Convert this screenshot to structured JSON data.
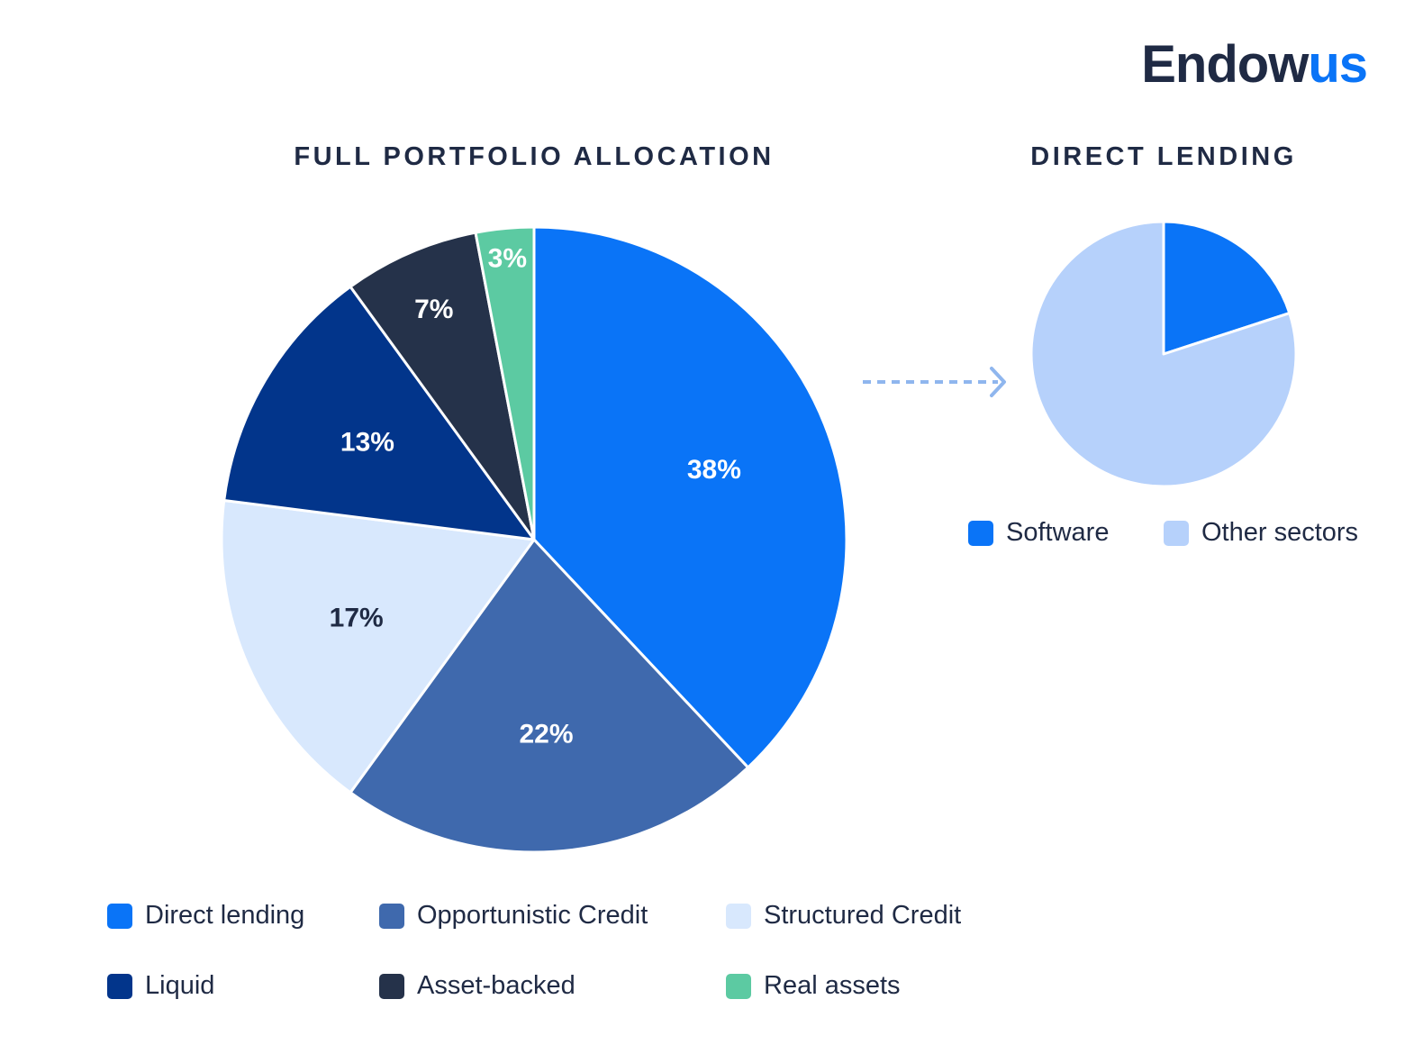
{
  "logo": {
    "main": "Endow",
    "accent": "us"
  },
  "colors": {
    "direct_lending": "#0a74f7",
    "opportunistic_credit": "#3f69ad",
    "structured_credit": "#d8e8fd",
    "liquid": "#02358b",
    "asset_backed": "#25324a",
    "real_assets": "#5ccaa2",
    "software": "#0a74f7",
    "other_sectors": "#b6d1fb",
    "arrow": "#8fb6ee"
  },
  "chart_data": [
    {
      "type": "pie",
      "title": "FULL PORTFOLIO ALLOCATION",
      "slices": [
        {
          "label": "Direct lending",
          "value": 38,
          "display": "38%",
          "color_key": "direct_lending",
          "label_color": "#ffffff"
        },
        {
          "label": "Opportunistic Credit",
          "value": 22,
          "display": "22%",
          "color_key": "opportunistic_credit",
          "label_color": "#ffffff"
        },
        {
          "label": "Structured Credit",
          "value": 17,
          "display": "17%",
          "color_key": "structured_credit",
          "label_color": "#1f2a44"
        },
        {
          "label": "Liquid",
          "value": 13,
          "display": "13%",
          "color_key": "liquid",
          "label_color": "#ffffff"
        },
        {
          "label": "Asset-backed",
          "value": 7,
          "display": "7%",
          "color_key": "asset_backed",
          "label_color": "#ffffff"
        },
        {
          "label": "Real assets",
          "value": 3,
          "display": "3%",
          "color_key": "real_assets",
          "label_color": "#ffffff"
        }
      ],
      "legend": [
        "Direct lending",
        "Opportunistic Credit",
        "Structured Credit",
        "Liquid",
        "Asset-backed",
        "Real assets"
      ]
    },
    {
      "type": "pie",
      "title": "DIRECT LENDING",
      "slices": [
        {
          "label": "Software",
          "value": 20,
          "color_key": "software"
        },
        {
          "label": "Other sectors",
          "value": 80,
          "color_key": "other_sectors"
        }
      ],
      "legend": [
        "Software",
        "Other sectors"
      ]
    }
  ]
}
